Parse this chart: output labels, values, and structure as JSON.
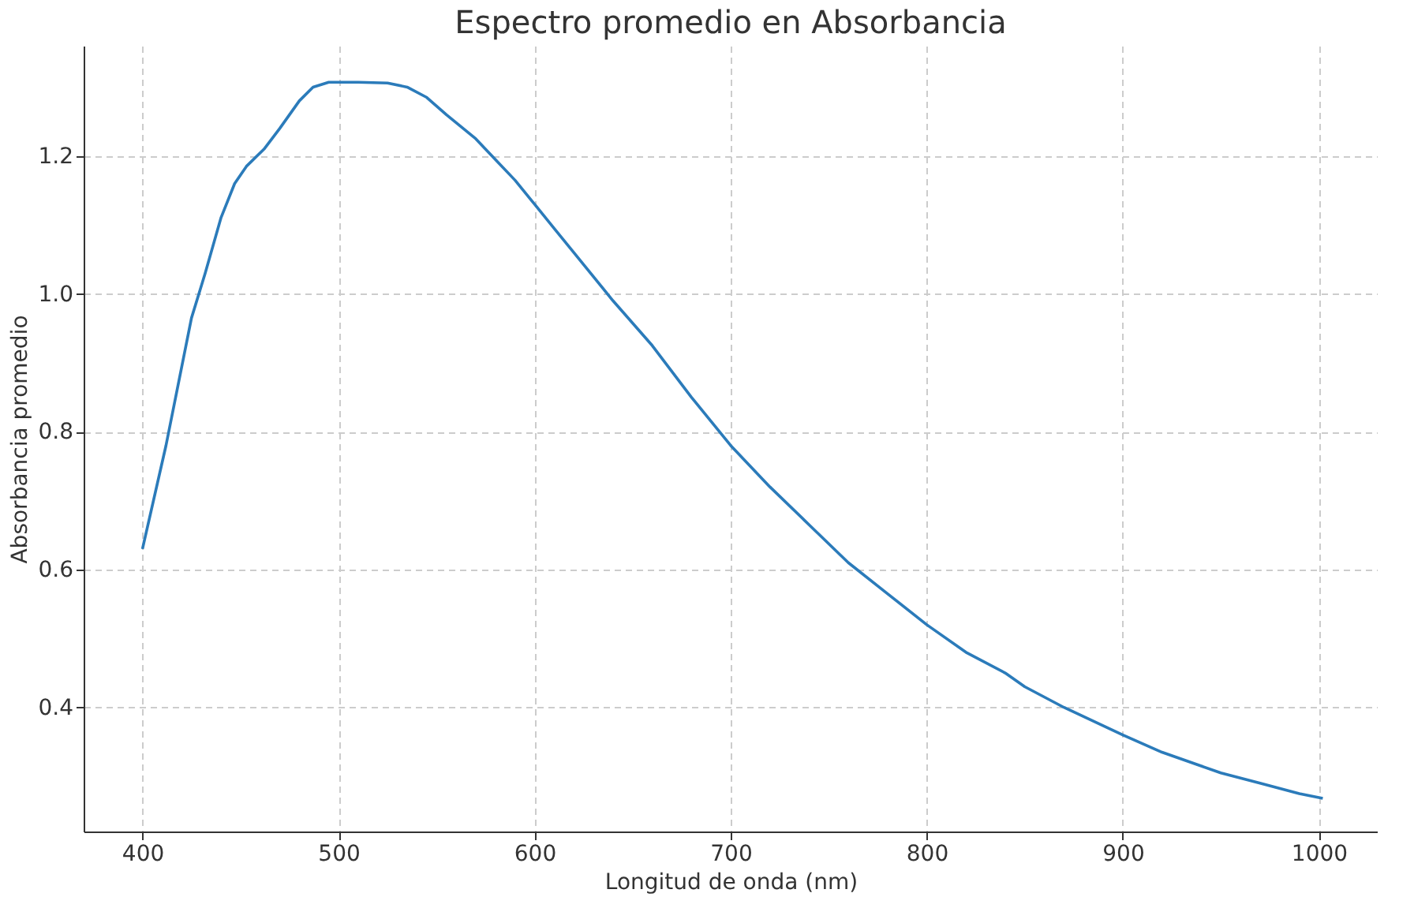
{
  "chart_data": {
    "type": "line",
    "title": "Espectro promedio en Absorbancia",
    "xlabel": "Longitud de onda (nm)",
    "ylabel": "Absorbancia promedio",
    "x": [
      400,
      412,
      425,
      432,
      440,
      447,
      453,
      462,
      470,
      480,
      487,
      495,
      510,
      525,
      535,
      545,
      555,
      570,
      580,
      590,
      600,
      610,
      620,
      640,
      660,
      680,
      700,
      720,
      740,
      760,
      780,
      800,
      820,
      840,
      850,
      870,
      900,
      920,
      940,
      950,
      970,
      990,
      1002
    ],
    "series": [
      {
        "color": "#2b7bba",
        "values": [
          0.63,
          0.78,
          0.965,
          1.03,
          1.11,
          1.16,
          1.185,
          1.21,
          1.24,
          1.28,
          1.3,
          1.307,
          1.307,
          1.306,
          1.3,
          1.285,
          1.26,
          1.225,
          1.195,
          1.165,
          1.13,
          1.095,
          1.06,
          0.99,
          0.925,
          0.85,
          0.78,
          0.72,
          0.665,
          0.61,
          0.565,
          0.52,
          0.48,
          0.45,
          0.43,
          0.4,
          0.36,
          0.335,
          0.315,
          0.305,
          0.29,
          0.275,
          0.268
        ]
      }
    ],
    "xlim": [
      370,
      1030
    ],
    "ylim": [
      0.22,
      1.36
    ],
    "xticks": [
      400,
      500,
      600,
      700,
      800,
      900,
      1000
    ],
    "yticks": [
      {
        "value": 0.4,
        "label": "0.4"
      },
      {
        "value": 0.6,
        "label": "0.6"
      },
      {
        "value": 0.8,
        "label": "0.8"
      },
      {
        "value": 1,
        "label": "1.0"
      },
      {
        "value": 1.2,
        "label": "1.2"
      }
    ],
    "grid": true,
    "line_style": "solid",
    "marker": "none"
  }
}
